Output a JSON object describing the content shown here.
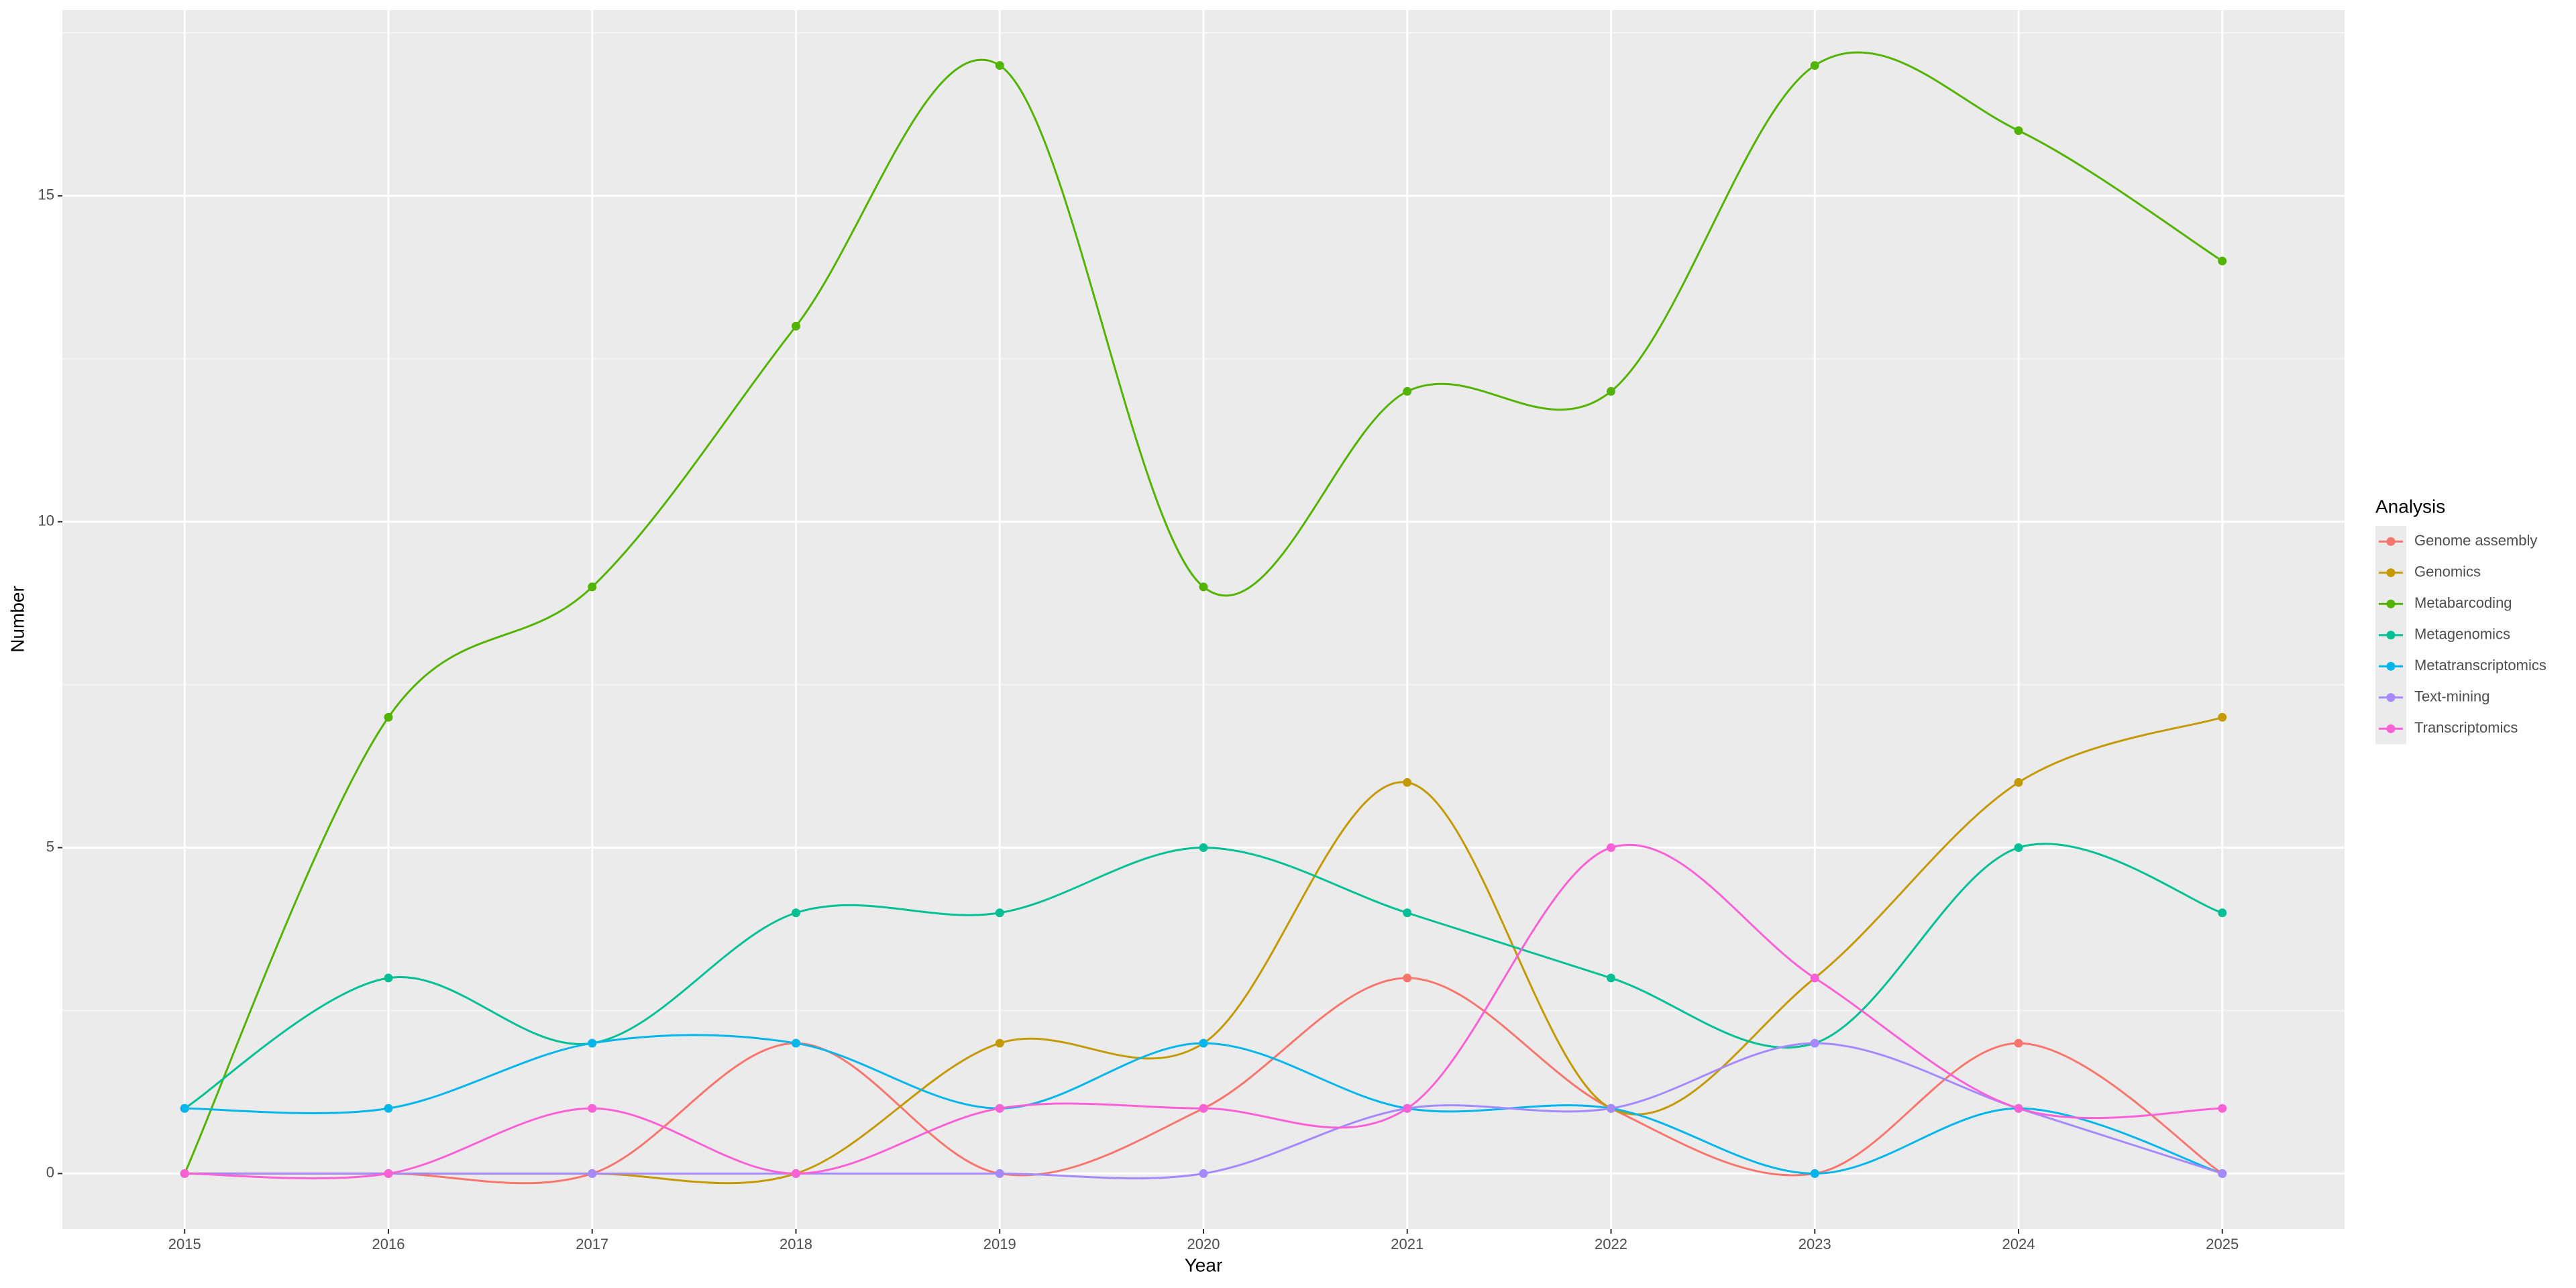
{
  "chart_data": {
    "type": "line",
    "x_label": "Year",
    "y_label": "Number",
    "legend_title": "Analysis",
    "legend_position": "right",
    "x": [
      2015,
      2016,
      2017,
      2018,
      2019,
      2020,
      2021,
      2022,
      2023,
      2024,
      2025
    ],
    "xlim": [
      2014.4,
      2025.6
    ],
    "xticks": [
      2015,
      2016,
      2017,
      2018,
      2019,
      2020,
      2021,
      2022,
      2023,
      2024,
      2025
    ],
    "ylim": [
      -0.85,
      17.85
    ],
    "yticks": [
      0,
      5,
      10,
      15
    ],
    "yminorticks": [
      2.5,
      7.5,
      12.5,
      17.5
    ],
    "grid": true,
    "smooth": true,
    "markers": true,
    "series": [
      {
        "name": "Genome assembly",
        "color": "#F8766D",
        "values": [
          0,
          0,
          0,
          2,
          0,
          1,
          3,
          1,
          0,
          2,
          0
        ]
      },
      {
        "name": "Genomics",
        "color": "#C49A00",
        "values": [
          0,
          0,
          0,
          0,
          2,
          2,
          6,
          1,
          3,
          6,
          7
        ]
      },
      {
        "name": "Metabarcoding",
        "color": "#53B400",
        "values": [
          0,
          7,
          9,
          13,
          17,
          9,
          12,
          12,
          17,
          16,
          14
        ]
      },
      {
        "name": "Metagenomics",
        "color": "#00C094",
        "values": [
          1,
          3,
          2,
          4,
          4,
          5,
          4,
          3,
          2,
          5,
          4
        ]
      },
      {
        "name": "Metatranscriptomics",
        "color": "#00B6EB",
        "values": [
          1,
          1,
          2,
          2,
          1,
          2,
          1,
          1,
          0,
          1,
          0
        ]
      },
      {
        "name": "Text-mining",
        "color": "#A58AFF",
        "values": [
          0,
          0,
          0,
          0,
          0,
          0,
          1,
          1,
          2,
          1,
          0
        ]
      },
      {
        "name": "Transcriptomics",
        "color": "#FB61D7",
        "values": [
          0,
          0,
          1,
          0,
          1,
          1,
          1,
          5,
          3,
          1,
          1
        ]
      }
    ]
  }
}
